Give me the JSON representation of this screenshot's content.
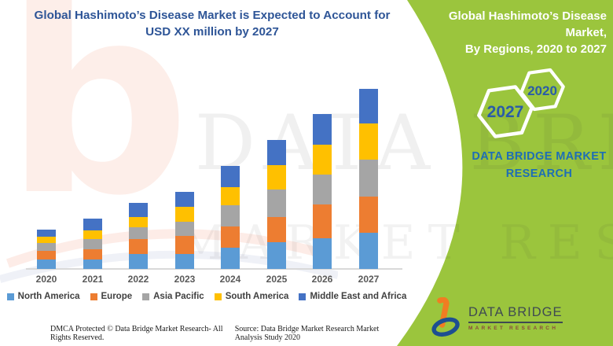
{
  "header": {
    "title_line1": "Global Hashimoto’s Disease Market is Expected to Account for",
    "title_line2": "USD XX million by 2027"
  },
  "side_panel": {
    "background_color": "#9BC53D",
    "title_line1": "Global Hashimoto’s Disease Market,",
    "title_line2": "By Regions, 2020 to 2027",
    "hexagon_large_label": "2027",
    "hexagon_small_label": "2020",
    "hexagon_label_color": "#2A5CA8",
    "brand_line1": "DATA BRIDGE MARKET",
    "brand_line2": "RESEARCH"
  },
  "logo": {
    "title": "DATA BRIDGE",
    "subtitle": "MARKET RESEARCH"
  },
  "watermark": {
    "line1": "DATA BRIDGE",
    "line2": "MARKET RESEARCH"
  },
  "footer": {
    "dmca": "DMCA Protected © Data Bridge Market Research- All Rights Reserved.",
    "source": "Source: Data Bridge Market Research Market Analysis Study 2020"
  },
  "chart_data": {
    "type": "bar",
    "stacked": true,
    "title": "Global Hashimoto’s Disease Market is Expected to Account for USD XX million by 2027",
    "categories": [
      "2020",
      "2021",
      "2022",
      "2023",
      "2024",
      "2025",
      "2026",
      "2027"
    ],
    "series": [
      {
        "name": "North America",
        "color": "#5B9BD5",
        "values": [
          12,
          12,
          19,
          19,
          27,
          34,
          39,
          46
        ]
      },
      {
        "name": "Europe",
        "color": "#ED7D31",
        "values": [
          11,
          13,
          19,
          23,
          27,
          32,
          43,
          46
        ]
      },
      {
        "name": "Asia Pacific",
        "color": "#A5A5A5",
        "values": [
          10,
          13,
          15,
          18,
          27,
          35,
          38,
          47
        ]
      },
      {
        "name": "South America",
        "color": "#FFC000",
        "values": [
          8,
          11,
          13,
          19,
          23,
          31,
          38,
          46
        ]
      },
      {
        "name": "Middle East and Africa",
        "color": "#4472C4",
        "values": [
          9,
          15,
          18,
          19,
          27,
          32,
          39,
          44
        ]
      }
    ],
    "totals": [
      50,
      64,
      84,
      98,
      131,
      164,
      197,
      229
    ],
    "value_axis_visible": false,
    "value_labels_shown": false,
    "units": "USD million (amounts masked as XX in source image)",
    "legend_position": "bottom",
    "grid": false,
    "ylim": [
      0,
      252
    ]
  }
}
